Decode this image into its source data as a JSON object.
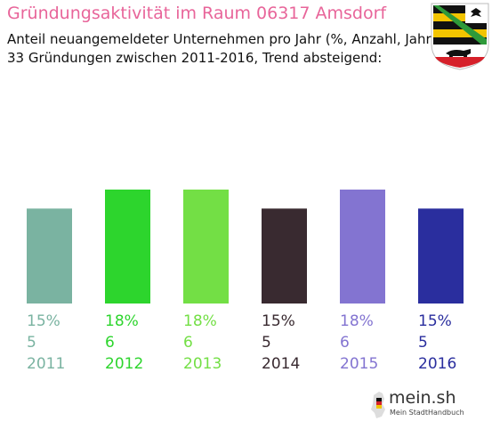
{
  "header": {
    "title": "Gründungsaktivität im Raum 06317 Amsdorf",
    "subtitle_line1": "Anteil neuangemeldeter Unternehmen pro Jahr (%, Anzahl, Jahr)",
    "subtitle_line2": "33 Gründungen zwischen 2011-2016, Trend absteigend:"
  },
  "coat_of_arms": {
    "icon": "saxony-anhalt-coat-of-arms-icon"
  },
  "logo": {
    "text": "mein.sh",
    "tagline": "Mein StadtHandbuch",
    "icon": "germany-map-icon"
  },
  "chart_data": {
    "type": "bar",
    "categories": [
      "2011",
      "2012",
      "2013",
      "2014",
      "2015",
      "2016"
    ],
    "percent_labels": [
      "15%",
      "18%",
      "18%",
      "15%",
      "18%",
      "15%"
    ],
    "values": [
      5,
      6,
      6,
      5,
      6,
      5
    ],
    "colors": [
      "#7ab3a1",
      "#2dd52d",
      "#73df45",
      "#392a30",
      "#8374d1",
      "#2a2e9e"
    ],
    "ylim": [
      0,
      6
    ],
    "grid": false,
    "legend": "none"
  }
}
